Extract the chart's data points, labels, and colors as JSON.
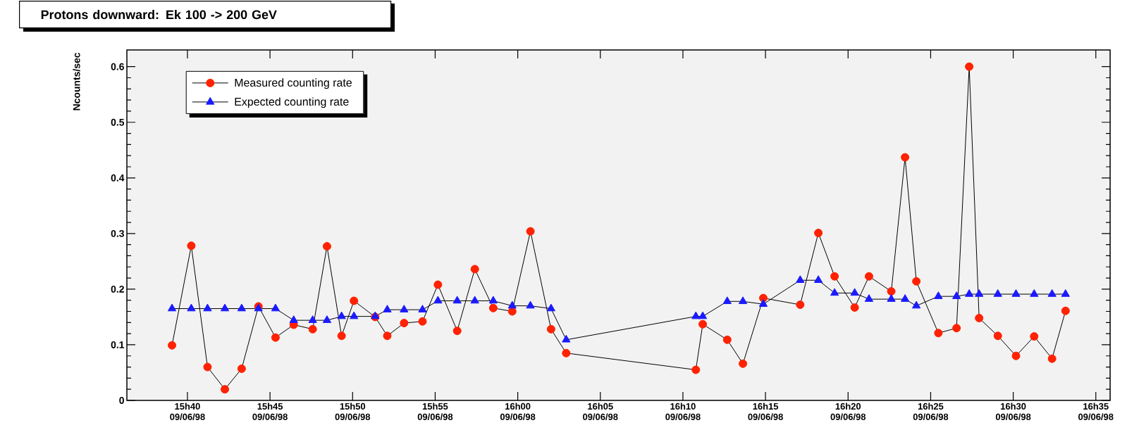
{
  "chart_data": {
    "type": "line",
    "title": "Protons downward: Ek 100 -> 200 GeV",
    "ylabel": "Ncounts/sec",
    "x": [
      "1998-06-09T15:39:04",
      "1998-06-09T15:40:14",
      "1998-06-09T15:41:13",
      "1998-06-09T15:42:16",
      "1998-06-09T15:43:17",
      "1998-06-09T15:44:18",
      "1998-06-09T15:45:20",
      "1998-06-09T15:46:26",
      "1998-06-09T15:47:35",
      "1998-06-09T15:48:27",
      "1998-06-09T15:49:20",
      "1998-06-09T15:50:05",
      "1998-06-09T15:51:22",
      "1998-06-09T15:52:06",
      "1998-06-09T15:53:07",
      "1998-06-09T15:54:14",
      "1998-06-09T15:55:10",
      "1998-06-09T15:56:20",
      "1998-06-09T15:57:24",
      "1998-06-09T15:58:31",
      "1998-06-09T15:59:40",
      "1998-06-09T16:00:46",
      "1998-06-09T16:02:01",
      "1998-06-09T16:02:56",
      "1998-06-09T16:10:47",
      "1998-06-09T16:11:12",
      "1998-06-09T16:12:41",
      "1998-06-09T16:13:38",
      "1998-06-09T16:14:52",
      "1998-06-09T16:17:06",
      "1998-06-09T16:18:12",
      "1998-06-09T16:19:11",
      "1998-06-09T16:20:24",
      "1998-06-09T16:21:16",
      "1998-06-09T16:22:37",
      "1998-06-09T16:23:27",
      "1998-06-09T16:24:08",
      "1998-06-09T16:25:28",
      "1998-06-09T16:26:34",
      "1998-06-09T16:27:20",
      "1998-06-09T16:27:56",
      "1998-06-09T16:29:04",
      "1998-06-09T16:30:10",
      "1998-06-09T16:31:16",
      "1998-06-09T16:32:21",
      "1998-06-09T16:33:10"
    ],
    "series": [
      {
        "name": "Measured counting rate",
        "color": "#ff2200",
        "marker": "circle",
        "values": [
          0.099,
          0.278,
          0.06,
          0.02,
          0.057,
          0.169,
          0.113,
          0.136,
          0.128,
          0.277,
          0.116,
          0.179,
          0.15,
          0.116,
          0.139,
          0.142,
          0.208,
          0.125,
          0.236,
          0.166,
          0.16,
          0.304,
          0.128,
          0.085,
          0.055,
          0.137,
          0.109,
          0.066,
          0.184,
          0.172,
          0.301,
          0.223,
          0.167,
          0.223,
          0.196,
          0.437,
          0.214,
          0.121,
          0.13,
          0.6,
          0.148,
          0.116,
          0.08,
          0.115,
          0.075,
          0.161
        ]
      },
      {
        "name": "Expected counting rate",
        "color": "#1a1aff",
        "marker": "triangle",
        "values": [
          0.165,
          0.165,
          0.165,
          0.165,
          0.165,
          0.165,
          0.165,
          0.144,
          0.144,
          0.144,
          0.151,
          0.151,
          0.151,
          0.163,
          0.163,
          0.163,
          0.179,
          0.179,
          0.179,
          0.179,
          0.17,
          0.17,
          0.165,
          0.109,
          0.151,
          0.151,
          0.178,
          0.178,
          0.173,
          0.216,
          0.216,
          0.193,
          0.193,
          0.182,
          0.182,
          0.182,
          0.17,
          0.187,
          0.187,
          0.191,
          0.191,
          0.191,
          0.191,
          0.191,
          0.191,
          0.191
        ]
      }
    ],
    "xlim": [
      "1998-06-09T15:36:20",
      "1998-06-09T16:35:52"
    ],
    "ylim": [
      0,
      0.63
    ],
    "xticks": [
      {
        "value": "1998-06-09T15:40",
        "label": "15h40 09/06/98"
      },
      {
        "value": "1998-06-09T15:45",
        "label": "15h45 09/06/98"
      },
      {
        "value": "1998-06-09T15:50",
        "label": "15h50 09/06/98"
      },
      {
        "value": "1998-06-09T15:55",
        "label": "15h55 09/06/98"
      },
      {
        "value": "1998-06-09T16:00",
        "label": "16h00 09/06/98"
      },
      {
        "value": "1998-06-09T16:05",
        "label": "16h05 09/06/98"
      },
      {
        "value": "1998-06-09T16:10",
        "label": "16h10 09/06/98"
      },
      {
        "value": "1998-06-09T16:15",
        "label": "16h15 09/06/98"
      },
      {
        "value": "1998-06-09T16:20",
        "label": "16h20 09/06/98"
      },
      {
        "value": "1998-06-09T16:25",
        "label": "16h25 09/06/98"
      },
      {
        "value": "1998-06-09T16:30",
        "label": "16h30 09/06/98"
      },
      {
        "value": "1998-06-09T16:35",
        "label": "16h35 09/06/98"
      }
    ],
    "yticks": [
      0,
      0.1,
      0.2,
      0.3,
      0.4,
      0.5,
      0.6
    ],
    "legend": "top left",
    "grid": false
  }
}
